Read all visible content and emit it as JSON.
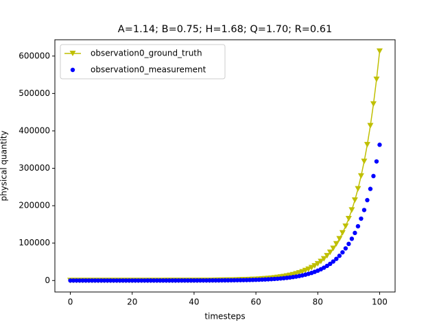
{
  "chart_data": {
    "type": "line",
    "title": "A=1.14; B=0.75; H=1.68; Q=1.70; R=0.61",
    "xlabel": "timesteps",
    "ylabel": "physical quantity",
    "x": [
      0,
      1,
      2,
      3,
      4,
      5,
      6,
      7,
      8,
      9,
      10,
      11,
      12,
      13,
      14,
      15,
      16,
      17,
      18,
      19,
      20,
      21,
      22,
      23,
      24,
      25,
      26,
      27,
      28,
      29,
      30,
      31,
      32,
      33,
      34,
      35,
      36,
      37,
      38,
      39,
      40,
      41,
      42,
      43,
      44,
      45,
      46,
      47,
      48,
      49,
      50,
      51,
      52,
      53,
      54,
      55,
      56,
      57,
      58,
      59,
      60,
      61,
      62,
      63,
      64,
      65,
      66,
      67,
      68,
      69,
      70,
      71,
      72,
      73,
      74,
      75,
      76,
      77,
      78,
      79,
      80,
      81,
      82,
      83,
      84,
      85,
      86,
      87,
      88,
      89,
      90,
      91,
      92,
      93,
      94,
      95,
      96,
      97,
      98,
      99,
      100
    ],
    "series": [
      {
        "name": "observation0_ground_truth",
        "color": "#bfbf00",
        "style": "line",
        "marker": "v",
        "values": [
          1,
          1,
          2,
          2,
          2,
          2,
          3,
          3,
          4,
          4,
          5,
          5,
          6,
          7,
          8,
          9,
          10,
          12,
          13,
          15,
          17,
          20,
          22,
          25,
          29,
          33,
          38,
          43,
          49,
          56,
          64,
          73,
          83,
          94,
          108,
          123,
          140,
          159,
          182,
          207,
          236,
          269,
          307,
          350,
          399,
          455,
          518,
          591,
          674,
          768,
          875,
          998,
          1138,
          1297,
          1478,
          1685,
          1921,
          2190,
          2497,
          2847,
          3245,
          3699,
          4217,
          4808,
          5481,
          6248,
          7123,
          8120,
          9257,
          10553,
          12030,
          13714,
          15634,
          17823,
          20318,
          23163,
          26405,
          30103,
          34316,
          39121,
          44598,
          50841,
          57960,
          66074,
          75325,
          85870,
          97893,
          111598,
          127221,
          145033,
          165338,
          188485,
          214873,
          244954,
          279248,
          318343,
          362910,
          413718,
          471639,
          537669,
          612943
        ]
      },
      {
        "name": "observation0_measurement",
        "color": "#0000ff",
        "style": "scatter",
        "marker": "o",
        "values": [
          1,
          1,
          1,
          1,
          1,
          1,
          2,
          2,
          2,
          2,
          3,
          3,
          4,
          4,
          5,
          5,
          6,
          7,
          8,
          9,
          10,
          12,
          13,
          15,
          17,
          20,
          22,
          25,
          29,
          33,
          38,
          43,
          49,
          56,
          64,
          73,
          83,
          94,
          108,
          123,
          140,
          159,
          182,
          207,
          236,
          269,
          307,
          350,
          399,
          455,
          518,
          591,
          673,
          768,
          875,
          998,
          1137,
          1297,
          1478,
          1685,
          1921,
          2190,
          2497,
          2846,
          3245,
          3699,
          4217,
          4807,
          5480,
          6247,
          7122,
          8119,
          9255,
          10551,
          12028,
          13712,
          15632,
          17821,
          20315,
          23160,
          26402,
          30098,
          34312,
          39116,
          44592,
          50835,
          57952,
          66066,
          75315,
          85859,
          97880,
          111583,
          127205,
          145013,
          165315,
          188459,
          214843,
          244921,
          279210,
          318300,
          362862
        ]
      }
    ],
    "xlim": [
      -5,
      105
    ],
    "ylim": [
      -30646,
      643590
    ],
    "xticks": [
      0,
      20,
      40,
      60,
      80,
      100
    ],
    "yticks": [
      0,
      100000,
      200000,
      300000,
      400000,
      500000,
      600000
    ],
    "legend": "upper left"
  }
}
